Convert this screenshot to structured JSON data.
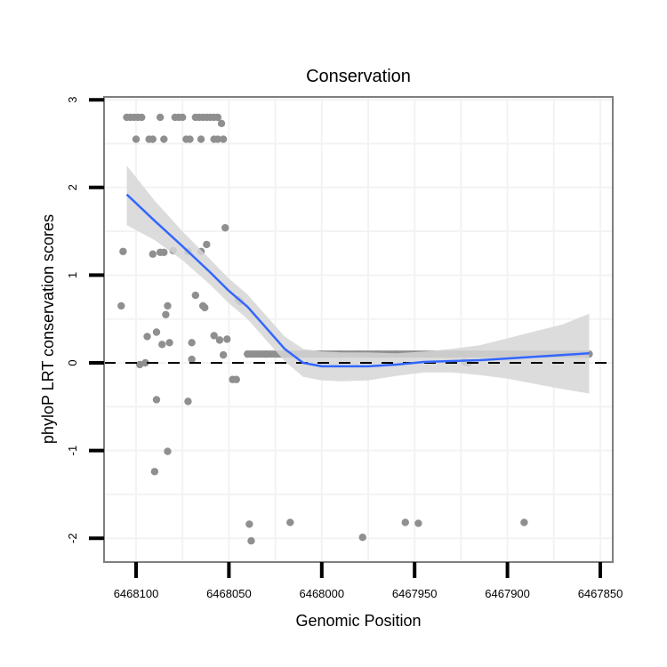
{
  "chart_data": {
    "type": "scatter",
    "title": "Conservation",
    "xlabel": "Genomic Position",
    "ylabel": "phyloP LRT conservation scores",
    "x_reversed": true,
    "xlim": [
      6468128,
      6467854
    ],
    "ylim": [
      -2.25,
      3.0
    ],
    "x_ticks": [
      6468100,
      6468050,
      6468000,
      6467950,
      6467900,
      6467850
    ],
    "x_tick_labels": [
      "6468100",
      "6468050",
      "6468000",
      "6467950",
      "6467900",
      "6467850"
    ],
    "y_ticks": [
      3,
      2,
      1,
      0,
      -1,
      -2
    ],
    "y_tick_labels": [
      "3",
      "2",
      "1",
      "0",
      "-1",
      "-2"
    ],
    "grid": true,
    "reference_line": {
      "y": 0,
      "style": "dashed",
      "color": "#000000"
    },
    "colors": {
      "points": "#8f8f8f",
      "smooth": "#3366ff",
      "ribbon": "#d6d6d6",
      "panel_border": "#7f7f7f",
      "grid": "#f3f3f3"
    },
    "series": [
      {
        "name": "scores",
        "points": [
          [
            6468105,
            2.8
          ],
          [
            6468103,
            2.8
          ],
          [
            6468101,
            2.8
          ],
          [
            6468099,
            2.8
          ],
          [
            6468097,
            2.8
          ],
          [
            6468087,
            2.8
          ],
          [
            6468079,
            2.8
          ],
          [
            6468077,
            2.8
          ],
          [
            6468075,
            2.8
          ],
          [
            6468068,
            2.8
          ],
          [
            6468066,
            2.8
          ],
          [
            6468064,
            2.8
          ],
          [
            6468062,
            2.8
          ],
          [
            6468060,
            2.8
          ],
          [
            6468058,
            2.8
          ],
          [
            6468056,
            2.8
          ],
          [
            6468054,
            2.73
          ],
          [
            6468100,
            2.55
          ],
          [
            6468093,
            2.55
          ],
          [
            6468091,
            2.55
          ],
          [
            6468085,
            2.55
          ],
          [
            6468073,
            2.55
          ],
          [
            6468071,
            2.55
          ],
          [
            6468065,
            2.55
          ],
          [
            6468058,
            2.55
          ],
          [
            6468056,
            2.55
          ],
          [
            6468053,
            2.55
          ],
          [
            6468052,
            1.54
          ],
          [
            6468062,
            1.35
          ],
          [
            6468065,
            1.27
          ],
          [
            6468080,
            1.28
          ],
          [
            6468107,
            1.27
          ],
          [
            6468091,
            1.24
          ],
          [
            6468087,
            1.26
          ],
          [
            6468085,
            1.26
          ],
          [
            6468072,
            1.27
          ],
          [
            6468045,
            0.72
          ],
          [
            6468044,
            0.7
          ],
          [
            6468068,
            0.77
          ],
          [
            6468064,
            0.65
          ],
          [
            6468063,
            0.63
          ],
          [
            6468083,
            0.65
          ],
          [
            6468108,
            0.65
          ],
          [
            6468084,
            0.55
          ],
          [
            6468094,
            0.3
          ],
          [
            6468089,
            0.35
          ],
          [
            6468086,
            0.21
          ],
          [
            6468082,
            0.23
          ],
          [
            6468070,
            0.23
          ],
          [
            6468058,
            0.31
          ],
          [
            6468055,
            0.26
          ],
          [
            6468051,
            0.27
          ],
          [
            6468053,
            0.09
          ],
          [
            6468070,
            0.04
          ],
          [
            6468098,
            -0.02
          ],
          [
            6468095,
            0.0
          ],
          [
            6468048,
            -0.19
          ],
          [
            6468046,
            -0.19
          ],
          [
            6468089,
            -0.42
          ],
          [
            6468072,
            -0.44
          ],
          [
            6468083,
            -1.01
          ],
          [
            6468090,
            -1.24
          ],
          [
            6468039,
            -1.84
          ],
          [
            6468038,
            -2.03
          ],
          [
            6468017,
            -1.82
          ],
          [
            6467978,
            -1.99
          ],
          [
            6467955,
            -1.82
          ],
          [
            6467948,
            -1.83
          ],
          [
            6467891,
            -1.82
          ],
          [
            6467980,
            0.1
          ],
          [
            6467970,
            0.1
          ],
          [
            6467960,
            0.1
          ],
          [
            6467950,
            0.1
          ],
          [
            6467940,
            0.1
          ],
          [
            6467930,
            0.1
          ],
          [
            6467924,
            0.1
          ],
          [
            6467920,
            0.1
          ],
          [
            6467910,
            0.1
          ],
          [
            6467900,
            0.1
          ],
          [
            6467890,
            0.1
          ],
          [
            6467880,
            0.1
          ],
          [
            6467870,
            0.1
          ],
          [
            6467860,
            0.1
          ],
          [
            6467856,
            0.1
          ],
          [
            6468040,
            0.1
          ],
          [
            6468030,
            0.1
          ],
          [
            6468020,
            0.1
          ],
          [
            6468010,
            0.1
          ],
          [
            6468000,
            0.1
          ],
          [
            6467990,
            0.1
          ],
          [
            6467923,
            0.01
          ],
          [
            6467921,
            0.0
          ]
        ],
        "band": [
          [
            6468040,
            0.1
          ],
          [
            6467856,
            0.1
          ]
        ]
      }
    ],
    "smooth": {
      "method": "loess",
      "x": [
        6468105,
        6468090,
        6468075,
        6468060,
        6468050,
        6468040,
        6468030,
        6468020,
        6468010,
        6468000,
        6467990,
        6467975,
        6467960,
        6467945,
        6467930,
        6467915,
        6467900,
        6467885,
        6467870,
        6467856
      ],
      "y": [
        1.92,
        1.62,
        1.33,
        1.03,
        0.82,
        0.64,
        0.4,
        0.16,
        0.0,
        -0.04,
        -0.04,
        -0.04,
        -0.02,
        0.01,
        0.02,
        0.03,
        0.05,
        0.07,
        0.09,
        0.11
      ],
      "ymin": [
        1.57,
        1.4,
        1.17,
        0.89,
        0.68,
        0.5,
        0.26,
        0.02,
        -0.16,
        -0.2,
        -0.21,
        -0.2,
        -0.15,
        -0.11,
        -0.11,
        -0.14,
        -0.18,
        -0.24,
        -0.3,
        -0.35
      ],
      "ymax": [
        2.25,
        1.85,
        1.5,
        1.18,
        0.96,
        0.78,
        0.54,
        0.3,
        0.16,
        0.13,
        0.12,
        0.12,
        0.11,
        0.13,
        0.16,
        0.2,
        0.28,
        0.36,
        0.44,
        0.56
      ]
    }
  }
}
